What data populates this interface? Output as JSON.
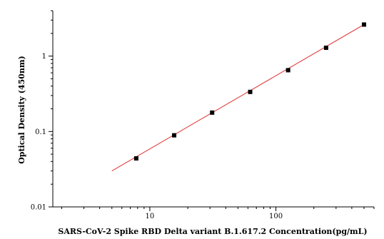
{
  "chart_data": {
    "type": "scatter",
    "title": "",
    "xlabel": "SARS-CoV-2 Spike RBD Delta variant B.1.617.2 Concentration(pg/mL)",
    "ylabel": "Optical Density (450nm)",
    "xscale": "log",
    "yscale": "log",
    "xlim": [
      1.7,
      600
    ],
    "ylim": [
      0.01,
      4
    ],
    "x_ticks": [
      10,
      100
    ],
    "x_tick_labels": [
      "10",
      "100"
    ],
    "y_ticks": [
      0.01,
      0.1,
      1
    ],
    "y_tick_labels": [
      "0.01",
      "0.1",
      "1"
    ],
    "grid": false,
    "legend": "none",
    "series": [
      {
        "x": [
          7.8,
          15.6,
          31.2,
          62.5,
          125,
          250,
          500
        ],
        "y": [
          0.044,
          0.089,
          0.178,
          0.335,
          0.65,
          1.29,
          2.62
        ]
      }
    ],
    "fit_line": {
      "x": [
        5,
        500
      ],
      "y": [
        0.03,
        2.62
      ]
    },
    "colors": {
      "marker": "#000000",
      "fit_line": "#e03030",
      "axis": "#000000"
    }
  }
}
